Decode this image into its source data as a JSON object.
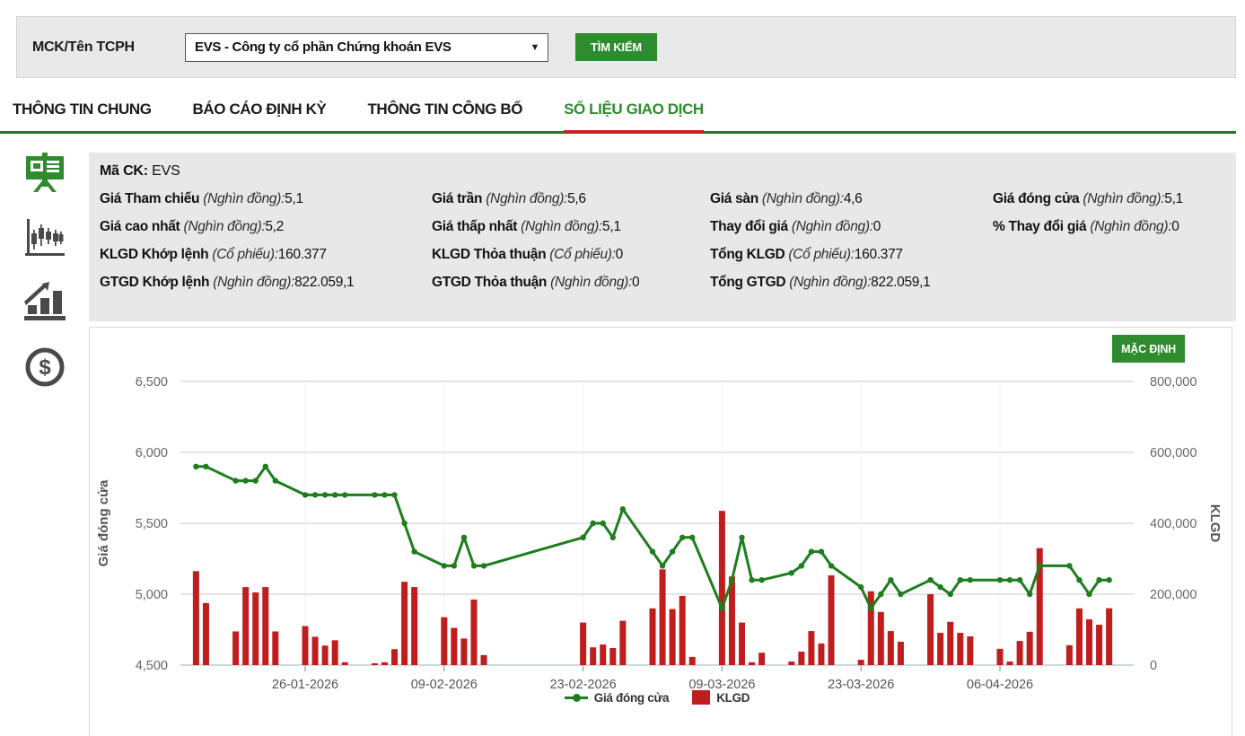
{
  "search_bar": {
    "label": "MCK/Tên TCPH",
    "dropdown_value": "EVS - Công ty cổ phần Chứng khoán EVS",
    "dropdown_arrow": "▼",
    "search_button": "TÌM KIẾM"
  },
  "tabs": [
    {
      "label": "THÔNG TIN CHUNG",
      "active": false
    },
    {
      "label": "BÁO CÁO ĐỊNH KỲ",
      "active": false
    },
    {
      "label": "THÔNG TIN CÔNG BỐ",
      "active": false
    },
    {
      "label": "SỐ LIỆU GIAO DỊCH",
      "active": true
    }
  ],
  "sidebar_icons": [
    {
      "name": "presentation-chart-icon",
      "active": true,
      "color": "#2e8b2e"
    },
    {
      "name": "candlestick-chart-icon",
      "active": false,
      "color": "#4a4a4a"
    },
    {
      "name": "bar-growth-icon",
      "active": false,
      "color": "#4a4a4a"
    },
    {
      "name": "dollar-circle-icon",
      "active": false,
      "color": "#4a4a4a"
    }
  ],
  "info_panel": {
    "code_label": "Mã CK:",
    "code_value": "EVS",
    "columns": [
      [
        {
          "label": "Giá Tham chiếu",
          "unit": "(Nghìn đồng):",
          "value": "5,1"
        },
        {
          "label": "Giá cao nhất",
          "unit": "(Nghìn đồng):",
          "value": "5,2"
        },
        {
          "label": "KLGD Khớp lệnh",
          "unit": "(Cổ phiếu):",
          "value": "160.377"
        },
        {
          "label": "GTGD Khớp lệnh",
          "unit": "(Nghìn đồng):",
          "value": "822.059,1"
        }
      ],
      [
        {
          "label": "Giá trần",
          "unit": "(Nghìn đồng):",
          "value": "5,6"
        },
        {
          "label": "Giá thấp nhất",
          "unit": "(Nghìn đồng):",
          "value": "5,1"
        },
        {
          "label": "KLGD Thỏa thuận",
          "unit": "(Cổ phiếu):",
          "value": "0"
        },
        {
          "label": "GTGD Thỏa thuận",
          "unit": "(Nghìn đồng):",
          "value": "0"
        }
      ],
      [
        {
          "label": "Giá sàn",
          "unit": "(Nghìn đồng):",
          "value": "4,6"
        },
        {
          "label": "Thay đổi giá",
          "unit": "(Nghìn đồng):",
          "value": "0"
        },
        {
          "label": "Tổng KLGD",
          "unit": "(Cổ phiếu):",
          "value": "160.377"
        },
        {
          "label": "Tổng GTGD",
          "unit": "(Nghìn đồng):",
          "value": "822.059,1"
        }
      ],
      [
        {
          "label": "Giá đóng cửa",
          "unit": "(Nghìn đồng):",
          "value": "5,1"
        },
        {
          "label": "% Thay đổi giá",
          "unit": "(Nghìn đồng):",
          "value": "0"
        }
      ]
    ]
  },
  "chart": {
    "default_button": "MẶC ĐỊNH"
  },
  "chart_data": {
    "type": "line+bar",
    "title": "",
    "x": [
      "2026-01-15",
      "2026-01-16",
      "2026-01-19",
      "2026-01-20",
      "2026-01-21",
      "2026-01-22",
      "2026-01-23",
      "2026-01-26",
      "2026-01-27",
      "2026-01-28",
      "2026-01-29",
      "2026-01-30",
      "2026-02-02",
      "2026-02-03",
      "2026-02-04",
      "2026-02-05",
      "2026-02-06",
      "2026-02-09",
      "2026-02-10",
      "2026-02-11",
      "2026-02-12",
      "2026-02-13",
      "2026-02-23",
      "2026-02-24",
      "2026-02-25",
      "2026-02-26",
      "2026-02-27",
      "2026-03-02",
      "2026-03-03",
      "2026-03-04",
      "2026-03-05",
      "2026-03-06",
      "2026-03-09",
      "2026-03-10",
      "2026-03-11",
      "2026-03-12",
      "2026-03-13",
      "2026-03-16",
      "2026-03-17",
      "2026-03-18",
      "2026-03-19",
      "2026-03-20",
      "2026-03-23",
      "2026-03-24",
      "2026-03-25",
      "2026-03-26",
      "2026-03-27",
      "2026-03-30",
      "2026-03-31",
      "2026-04-01",
      "2026-04-02",
      "2026-04-03",
      "2026-04-06",
      "2026-04-07",
      "2026-04-08",
      "2026-04-09",
      "2026-04-10",
      "2026-04-13",
      "2026-04-14",
      "2026-04-15",
      "2026-04-16",
      "2026-04-17"
    ],
    "series": [
      {
        "name": "Giá đóng cửa",
        "type": "line",
        "axis": "left",
        "color": "#1e7d1e",
        "values": [
          5900,
          5900,
          5800,
          5800,
          5800,
          5900,
          5800,
          5700,
          5700,
          5700,
          5700,
          5700,
          5700,
          5700,
          5700,
          5500,
          5300,
          5200,
          5200,
          5400,
          5200,
          5200,
          5400,
          5500,
          5500,
          5400,
          5600,
          5300,
          5200,
          5300,
          5400,
          5400,
          4900,
          5100,
          5400,
          5100,
          5100,
          5150,
          5200,
          5300,
          5300,
          5200,
          5050,
          4900,
          5000,
          5100,
          5000,
          5100,
          5050,
          5000,
          5100,
          5100,
          5100,
          5100,
          5100,
          5000,
          5200,
          5200,
          5100,
          5000,
          5100,
          5100
        ]
      },
      {
        "name": "KLGD",
        "type": "bar",
        "axis": "right",
        "color": "#c01d1d",
        "values": [
          265000,
          175000,
          95000,
          220000,
          205000,
          220000,
          95000,
          110000,
          80000,
          55000,
          70000,
          8000,
          5000,
          8000,
          45000,
          235000,
          220000,
          135000,
          105000,
          75000,
          185000,
          28000,
          120000,
          50000,
          58000,
          48000,
          125000,
          160000,
          270000,
          158000,
          195000,
          23000,
          435000,
          250000,
          120000,
          8000,
          35000,
          10000,
          38000,
          96000,
          61000,
          253000,
          15000,
          208000,
          150000,
          96000,
          66000,
          200000,
          91000,
          122000,
          91000,
          81000,
          46000,
          10000,
          68000,
          94000,
          330000,
          56000,
          160000,
          129000,
          114000,
          160377
        ]
      }
    ],
    "left_axis": {
      "title": "Giá đóng cửa",
      "min": 4500,
      "max": 6500,
      "tick_labels": [
        "6,500",
        "6,000",
        "5,500",
        "5,000",
        "4,500"
      ]
    },
    "right_axis": {
      "title": "KLGD",
      "min": 0,
      "max": 800000,
      "tick_labels": [
        "800,000",
        "600,000",
        "400,000",
        "200,000",
        "0"
      ]
    },
    "x_ticks": [
      {
        "label": "26-01-2026",
        "date": "2026-01-26"
      },
      {
        "label": "09-02-2026",
        "date": "2026-02-09"
      },
      {
        "label": "23-02-2026",
        "date": "2026-02-23"
      },
      {
        "label": "09-03-2026",
        "date": "2026-03-09"
      },
      {
        "label": "23-03-2026",
        "date": "2026-03-23"
      },
      {
        "label": "06-04-2026",
        "date": "2026-04-06"
      }
    ],
    "legend": [
      "Giá đóng cửa",
      "KLGD"
    ],
    "grid": true,
    "legend_position": "bottom"
  }
}
